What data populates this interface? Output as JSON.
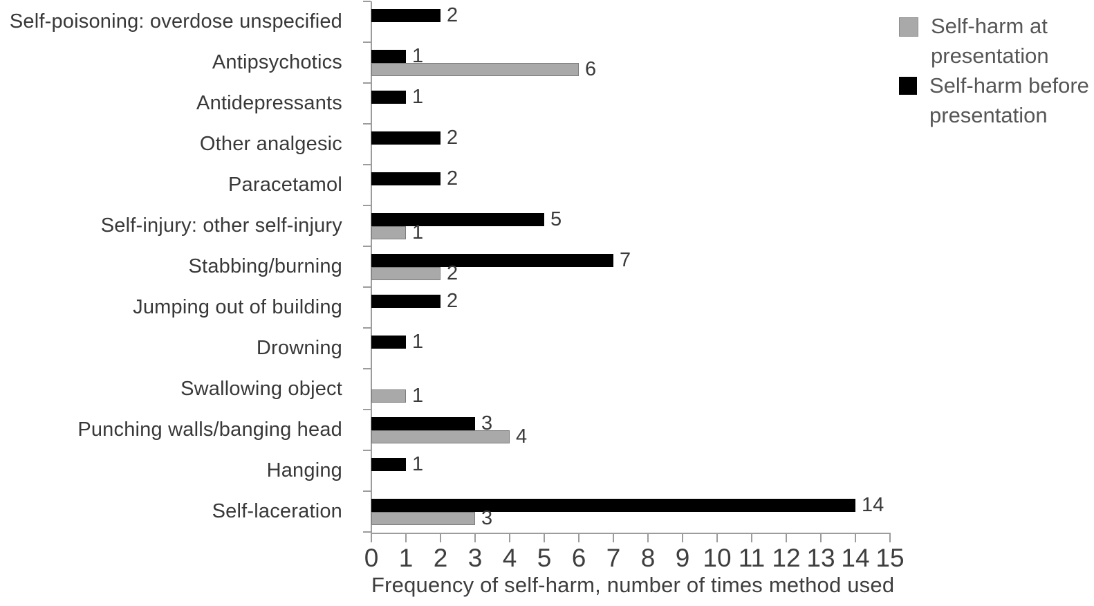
{
  "chart_data": {
    "type": "bar",
    "orientation": "horizontal",
    "title": "",
    "xlabel": "Frequency of self-harm, number of times method used",
    "ylabel": "",
    "xlim": [
      0,
      15
    ],
    "x_ticks": [
      0,
      1,
      2,
      3,
      4,
      5,
      6,
      7,
      8,
      9,
      10,
      11,
      12,
      13,
      14,
      15
    ],
    "grid": false,
    "legend_position": "top-right",
    "categories": [
      "Self-poisoning: overdose unspecified",
      "Antipsychotics",
      "Antidepressants",
      "Other analgesic",
      "Paracetamol",
      "Self-injury: other self-injury",
      "Stabbing/burning",
      "Jumping out of building",
      "Drowning",
      "Swallowing object",
      "Punching walls/banging head",
      "Hanging",
      "Self-laceration"
    ],
    "series": [
      {
        "name": "Self-harm at presentation",
        "color": "#a9a9a9",
        "values": [
          0,
          6,
          0,
          0,
          0,
          1,
          2,
          0,
          0,
          1,
          4,
          0,
          3
        ]
      },
      {
        "name": "Self-harm before presentation",
        "color": "#000000",
        "values": [
          2,
          1,
          1,
          2,
          2,
          5,
          7,
          2,
          1,
          0,
          3,
          1,
          14
        ]
      }
    ]
  },
  "legend": {
    "items": [
      {
        "lines": [
          "Self-harm at",
          "presentation"
        ],
        "color": "#a9a9a9"
      },
      {
        "lines": [
          "Self-harm before",
          "presentation"
        ],
        "color": "#000000"
      }
    ]
  },
  "colors": {
    "axis": "#9c9c9c",
    "text": "#3a3a3a",
    "bar_at_presentation": "#a9a9a9",
    "bar_before_presentation": "#000000"
  }
}
